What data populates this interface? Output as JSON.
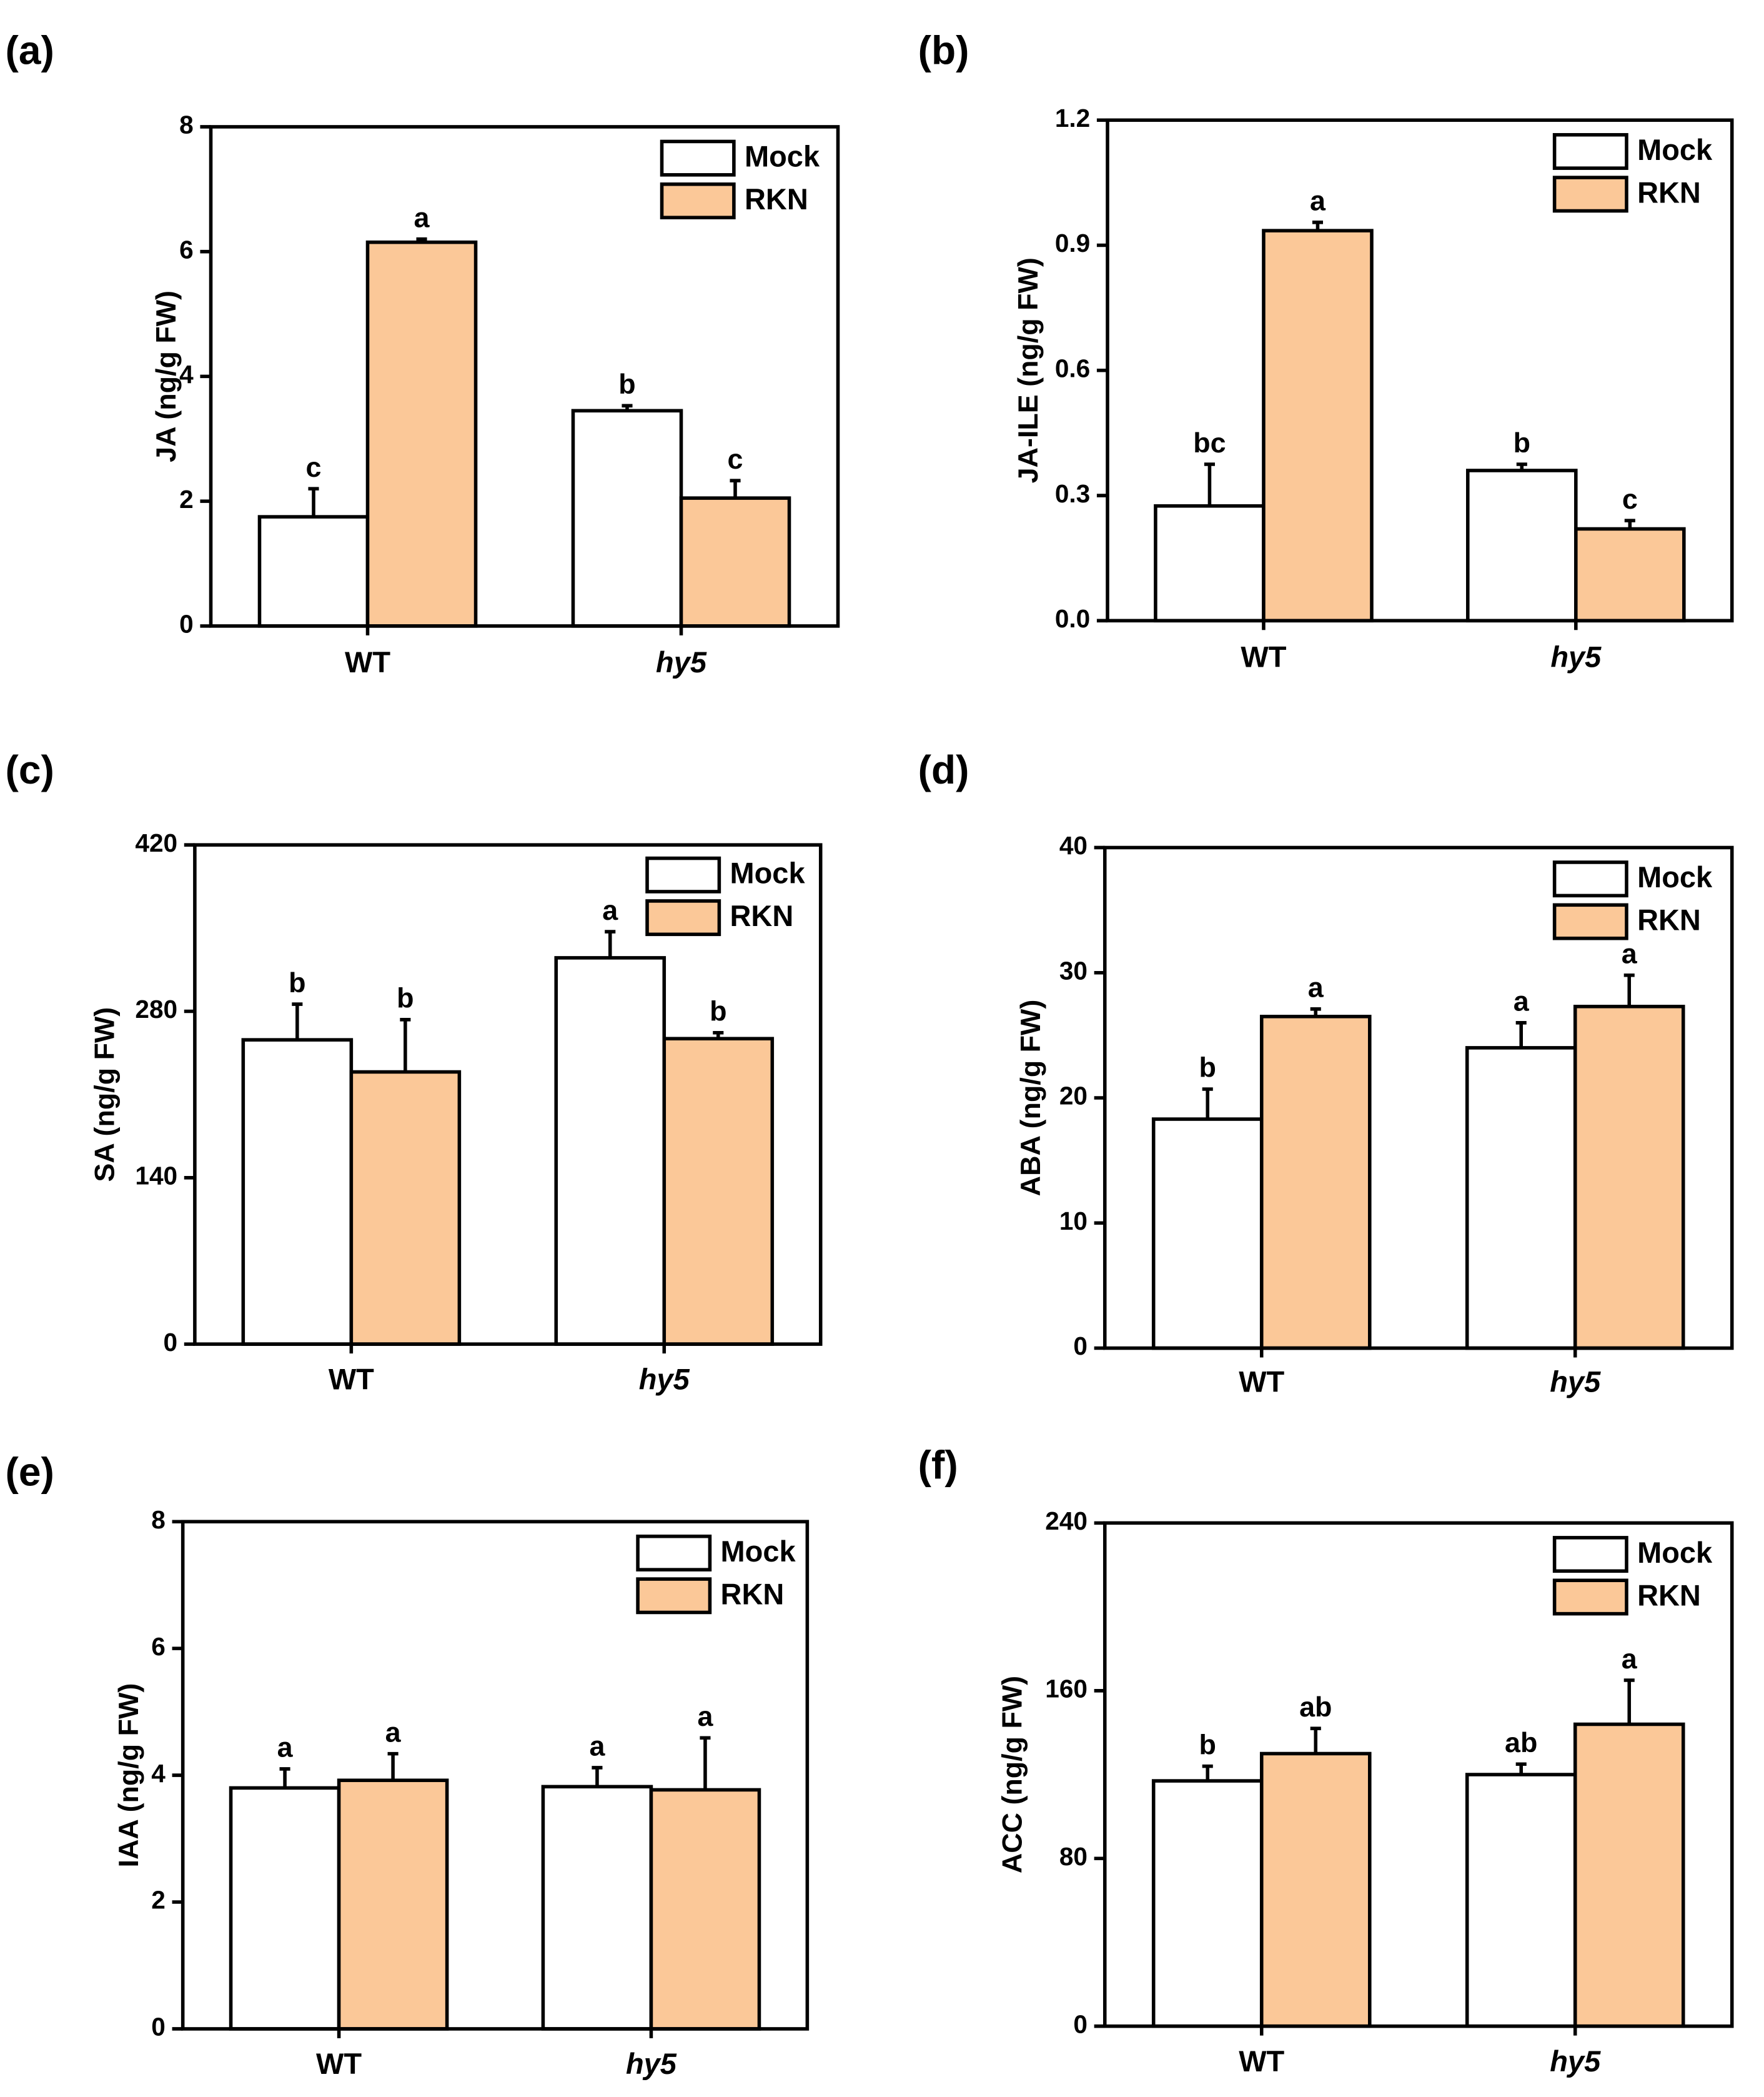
{
  "figure": {
    "colors": {
      "mock": "#ffffff",
      "rkn": "#fbc898",
      "stroke": "#000000"
    }
  },
  "chart_data": [
    {
      "panel_label": "(a)",
      "type": "bar",
      "title": "",
      "ylabel": "JA (ng/g FW)",
      "xlabel": "",
      "categories": [
        "WT",
        "hy5"
      ],
      "italic_categories": [
        false,
        true
      ],
      "ylim": [
        0,
        8
      ],
      "yticks": [
        "0",
        "2",
        "4",
        "6",
        "8"
      ],
      "grid": false,
      "legend": {
        "entries": [
          "Mock",
          "RKN"
        ],
        "position": "top-right"
      },
      "series": [
        {
          "name": "Mock",
          "values": [
            1.75,
            3.45
          ],
          "errors": [
            0.45,
            0.08
          ],
          "letters": [
            "c",
            "b"
          ]
        },
        {
          "name": "RKN",
          "values": [
            6.15,
            2.05
          ],
          "errors": [
            0.05,
            0.28
          ],
          "letters": [
            "a",
            "c"
          ]
        }
      ]
    },
    {
      "panel_label": "(b)",
      "type": "bar",
      "title": "",
      "ylabel": "JA-ILE (ng/g FW)",
      "xlabel": "",
      "categories": [
        "WT",
        "hy5"
      ],
      "italic_categories": [
        false,
        true
      ],
      "ylim": [
        0,
        1.2
      ],
      "yticks": [
        "0.0",
        "0.3",
        "0.6",
        "0.9",
        "1.2"
      ],
      "grid": false,
      "legend": {
        "entries": [
          "Mock",
          "RKN"
        ],
        "position": "top-right"
      },
      "series": [
        {
          "name": "Mock",
          "values": [
            0.275,
            0.36
          ],
          "errors": [
            0.1,
            0.015
          ],
          "letters": [
            "bc",
            "b"
          ]
        },
        {
          "name": "RKN",
          "values": [
            0.935,
            0.22
          ],
          "errors": [
            0.02,
            0.02
          ],
          "letters": [
            "a",
            "c"
          ]
        }
      ]
    },
    {
      "panel_label": "(c)",
      "type": "bar",
      "title": "",
      "ylabel": "SA (ng/g FW)",
      "xlabel": "",
      "categories": [
        "WT",
        "hy5"
      ],
      "italic_categories": [
        false,
        true
      ],
      "ylim": [
        0,
        420
      ],
      "yticks": [
        "0",
        "140",
        "280",
        "420"
      ],
      "grid": false,
      "legend": {
        "entries": [
          "Mock",
          "RKN"
        ],
        "position": "top-right"
      },
      "series": [
        {
          "name": "Mock",
          "values": [
            256,
            325
          ],
          "errors": [
            30,
            22
          ],
          "letters": [
            "b",
            "a"
          ]
        },
        {
          "name": "RKN",
          "values": [
            229,
            257
          ],
          "errors": [
            44,
            5
          ],
          "letters": [
            "b",
            "b"
          ]
        }
      ]
    },
    {
      "panel_label": "(d)",
      "type": "bar",
      "title": "",
      "ylabel": "ABA (ng/g FW)",
      "xlabel": "",
      "categories": [
        "WT",
        "hy5"
      ],
      "italic_categories": [
        false,
        true
      ],
      "ylim": [
        0,
        40
      ],
      "yticks": [
        "0",
        "10",
        "20",
        "30",
        "40"
      ],
      "grid": false,
      "legend": {
        "entries": [
          "Mock",
          "RKN"
        ],
        "position": "top-right"
      },
      "series": [
        {
          "name": "Mock",
          "values": [
            18.3,
            24
          ],
          "errors": [
            2.4,
            2
          ],
          "letters": [
            "b",
            "a"
          ]
        },
        {
          "name": "RKN",
          "values": [
            26.5,
            27.3
          ],
          "errors": [
            0.6,
            2.5
          ],
          "letters": [
            "a",
            "a"
          ]
        }
      ]
    },
    {
      "panel_label": "(e)",
      "type": "bar",
      "title": "",
      "ylabel": "IAA (ng/g FW)",
      "xlabel": "",
      "categories": [
        "WT",
        "hy5"
      ],
      "italic_categories": [
        false,
        true
      ],
      "ylim": [
        0,
        8
      ],
      "yticks": [
        "0",
        "2",
        "4",
        "6",
        "8"
      ],
      "grid": false,
      "legend": {
        "entries": [
          "Mock",
          "RKN"
        ],
        "position": "top-right"
      },
      "series": [
        {
          "name": "Mock",
          "values": [
            3.8,
            3.82
          ],
          "errors": [
            0.3,
            0.3
          ],
          "letters": [
            "a",
            "a"
          ]
        },
        {
          "name": "RKN",
          "values": [
            3.92,
            3.77
          ],
          "errors": [
            0.42,
            0.82
          ],
          "letters": [
            "a",
            "a"
          ]
        }
      ]
    },
    {
      "panel_label": "(f)",
      "type": "bar",
      "title": "",
      "ylabel": "ACC (ng/g FW)",
      "xlabel": "",
      "categories": [
        "WT",
        "hy5"
      ],
      "italic_categories": [
        false,
        true
      ],
      "ylim": [
        0,
        240
      ],
      "yticks": [
        "0",
        "80",
        "160",
        "240"
      ],
      "grid": false,
      "legend": {
        "entries": [
          "Mock",
          "RKN"
        ],
        "position": "top-right"
      },
      "series": [
        {
          "name": "Mock",
          "values": [
            117,
            120
          ],
          "errors": [
            7,
            5
          ],
          "letters": [
            "b",
            "ab"
          ]
        },
        {
          "name": "RKN",
          "values": [
            130,
            144
          ],
          "errors": [
            12,
            21
          ],
          "letters": [
            "ab",
            "a"
          ]
        }
      ]
    }
  ]
}
